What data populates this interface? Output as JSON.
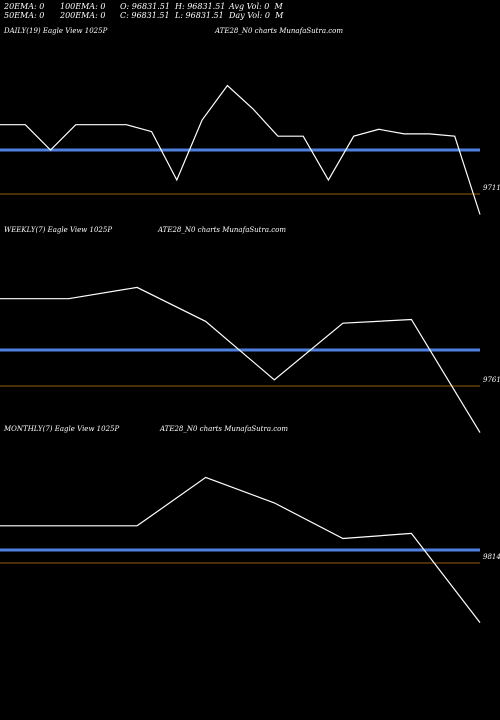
{
  "header": {
    "row1": [
      "20EMA: 0",
      "100EMA: 0",
      "O: 96831.51",
      "H: 96831.51",
      "Avg Vol: 0  M"
    ],
    "row2": [
      "50EMA: 0",
      "200EMA: 0",
      "C: 96831.51",
      "L: 96831.51",
      "Day Vol: 0  M"
    ]
  },
  "colors": {
    "price": "#ffffff",
    "ema": "#4f7fdf",
    "level": "#c87814",
    "background": "#000000"
  },
  "chart_data": [
    {
      "type": "line",
      "title_parts": [
        "DAILY(19) Eagle  View  1025P",
        "ATE28_N0  charts MunafaSutra.com"
      ],
      "level_label": "9711",
      "series": [
        {
          "values": [
            9742,
            9742,
            9731,
            9742,
            9742,
            9742,
            9739,
            9718,
            9744,
            9759,
            9749,
            9737,
            9737,
            9718,
            9737,
            9740,
            9738,
            9738,
            9737,
            9703
          ]
        }
      ]
    },
    {
      "type": "line",
      "title_parts": [
        "WEEKLY(7) Eagle  View  1025P",
        "ATE28_N0  charts MunafaSutra.com"
      ],
      "level_label": "9761",
      "series": [
        {
          "values": [
            9800,
            9800,
            9806,
            9788,
            9757,
            9787,
            9789,
            9729
          ]
        }
      ]
    },
    {
      "type": "line",
      "title_parts": [
        "MONTHLY(7) Eagle  View  1025P",
        "ATE28_N0  charts MunafaSutra.com"
      ],
      "level_label": "9814",
      "series": [
        {
          "values": [
            9834,
            9834,
            9834,
            9853,
            9843,
            9829,
            9831,
            9796
          ]
        }
      ]
    }
  ]
}
